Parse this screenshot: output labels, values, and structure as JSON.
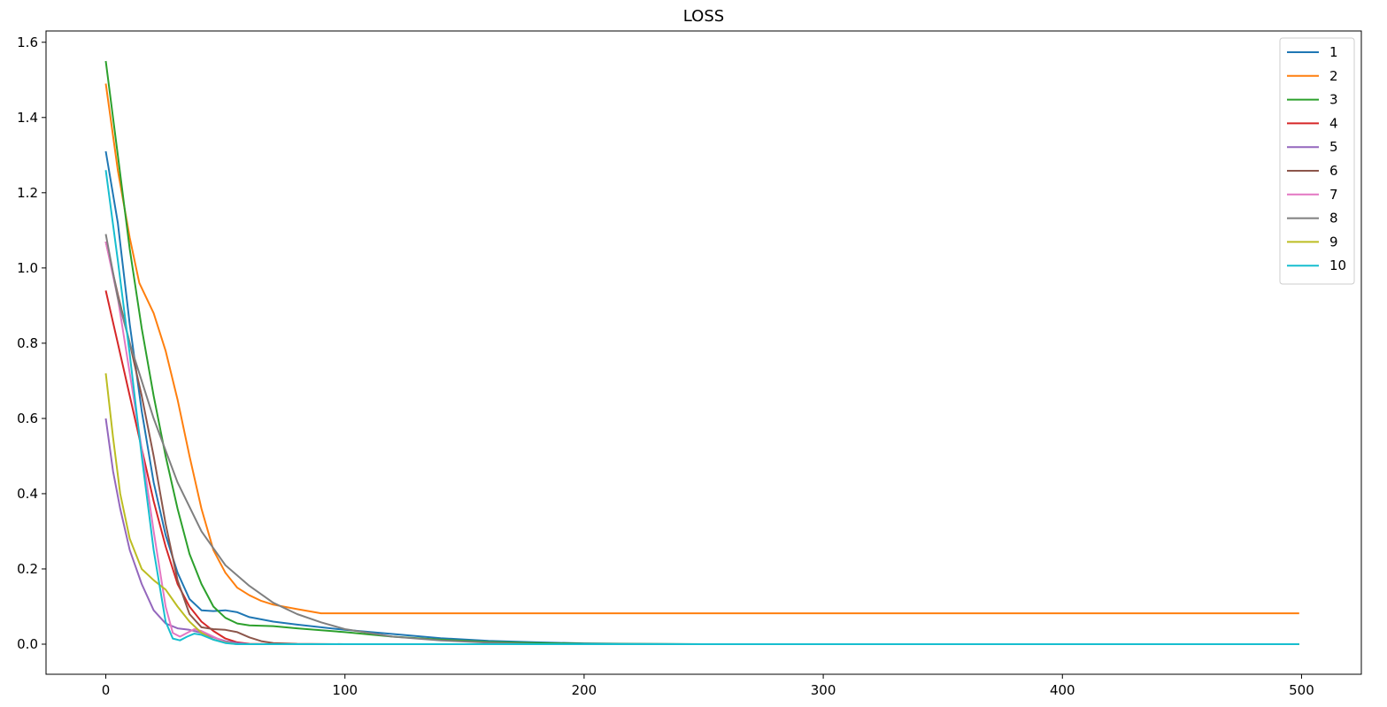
{
  "chart_data": {
    "type": "line",
    "title": "LOSS",
    "xlabel": "",
    "ylabel": "",
    "xlim": [
      -25,
      525
    ],
    "ylim": [
      -0.08,
      1.63
    ],
    "xticks": [
      0,
      100,
      200,
      300,
      400,
      500
    ],
    "yticks": [
      0.0,
      0.2,
      0.4,
      0.6,
      0.8,
      1.0,
      1.2,
      1.4,
      1.6
    ],
    "xtick_labels": [
      "0",
      "100",
      "200",
      "300",
      "400",
      "500"
    ],
    "ytick_labels": [
      "0.0",
      "0.2",
      "0.4",
      "0.6",
      "0.8",
      "1.0",
      "1.2",
      "1.4",
      "1.6"
    ],
    "grid": false,
    "legend_position": "top-right",
    "series": [
      {
        "name": "1",
        "color": "#1f77b4",
        "points": [
          [
            0,
            1.31
          ],
          [
            5,
            1.12
          ],
          [
            10,
            0.85
          ],
          [
            15,
            0.62
          ],
          [
            20,
            0.43
          ],
          [
            25,
            0.29
          ],
          [
            30,
            0.19
          ],
          [
            35,
            0.12
          ],
          [
            40,
            0.09
          ],
          [
            45,
            0.088
          ],
          [
            50,
            0.09
          ],
          [
            55,
            0.085
          ],
          [
            60,
            0.072
          ],
          [
            70,
            0.06
          ],
          [
            80,
            0.052
          ],
          [
            90,
            0.045
          ],
          [
            100,
            0.038
          ],
          [
            120,
            0.027
          ],
          [
            140,
            0.016
          ],
          [
            160,
            0.009
          ],
          [
            180,
            0.005
          ],
          [
            200,
            0.002
          ],
          [
            220,
            0.001
          ],
          [
            250,
            0.0
          ],
          [
            300,
            0.0
          ],
          [
            499,
            0.0
          ]
        ]
      },
      {
        "name": "2",
        "color": "#ff7f0e",
        "points": [
          [
            0,
            1.49
          ],
          [
            5,
            1.26
          ],
          [
            10,
            1.08
          ],
          [
            14,
            0.96
          ],
          [
            20,
            0.88
          ],
          [
            25,
            0.78
          ],
          [
            30,
            0.65
          ],
          [
            35,
            0.5
          ],
          [
            40,
            0.36
          ],
          [
            45,
            0.25
          ],
          [
            50,
            0.19
          ],
          [
            55,
            0.15
          ],
          [
            60,
            0.13
          ],
          [
            65,
            0.115
          ],
          [
            70,
            0.105
          ],
          [
            80,
            0.093
          ],
          [
            90,
            0.082
          ],
          [
            100,
            0.082
          ],
          [
            200,
            0.082
          ],
          [
            300,
            0.082
          ],
          [
            400,
            0.082
          ],
          [
            499,
            0.082
          ]
        ]
      },
      {
        "name": "3",
        "color": "#2ca02c",
        "points": [
          [
            0,
            1.55
          ],
          [
            5,
            1.3
          ],
          [
            10,
            1.05
          ],
          [
            15,
            0.84
          ],
          [
            20,
            0.66
          ],
          [
            25,
            0.5
          ],
          [
            30,
            0.36
          ],
          [
            35,
            0.24
          ],
          [
            40,
            0.16
          ],
          [
            45,
            0.1
          ],
          [
            50,
            0.07
          ],
          [
            55,
            0.055
          ],
          [
            60,
            0.05
          ],
          [
            70,
            0.048
          ],
          [
            80,
            0.042
          ],
          [
            100,
            0.032
          ],
          [
            120,
            0.02
          ],
          [
            140,
            0.012
          ],
          [
            160,
            0.006
          ],
          [
            180,
            0.003
          ],
          [
            200,
            0.001
          ],
          [
            250,
            0.0
          ],
          [
            499,
            0.0
          ]
        ]
      },
      {
        "name": "4",
        "color": "#d62728",
        "points": [
          [
            0,
            0.94
          ],
          [
            5,
            0.8
          ],
          [
            10,
            0.66
          ],
          [
            15,
            0.52
          ],
          [
            20,
            0.38
          ],
          [
            25,
            0.26
          ],
          [
            30,
            0.16
          ],
          [
            35,
            0.1
          ],
          [
            40,
            0.06
          ],
          [
            45,
            0.035
          ],
          [
            50,
            0.015
          ],
          [
            55,
            0.005
          ],
          [
            60,
            0.001
          ],
          [
            70,
            0.0
          ],
          [
            499,
            0.0
          ]
        ]
      },
      {
        "name": "5",
        "color": "#9467bd",
        "points": [
          [
            0,
            0.6
          ],
          [
            3,
            0.46
          ],
          [
            6,
            0.36
          ],
          [
            10,
            0.25
          ],
          [
            15,
            0.16
          ],
          [
            20,
            0.09
          ],
          [
            25,
            0.055
          ],
          [
            30,
            0.042
          ],
          [
            35,
            0.038
          ],
          [
            40,
            0.03
          ],
          [
            45,
            0.018
          ],
          [
            50,
            0.008
          ],
          [
            55,
            0.003
          ],
          [
            60,
            0.0
          ],
          [
            499,
            0.0
          ]
        ]
      },
      {
        "name": "6",
        "color": "#8c564b",
        "points": [
          [
            0,
            1.07
          ],
          [
            5,
            0.93
          ],
          [
            10,
            0.8
          ],
          [
            15,
            0.66
          ],
          [
            20,
            0.5
          ],
          [
            25,
            0.32
          ],
          [
            30,
            0.17
          ],
          [
            35,
            0.08
          ],
          [
            40,
            0.045
          ],
          [
            45,
            0.04
          ],
          [
            50,
            0.038
          ],
          [
            55,
            0.032
          ],
          [
            60,
            0.018
          ],
          [
            65,
            0.008
          ],
          [
            70,
            0.003
          ],
          [
            80,
            0.001
          ],
          [
            100,
            0.0
          ],
          [
            499,
            0.0
          ]
        ]
      },
      {
        "name": "7",
        "color": "#e377c2",
        "points": [
          [
            0,
            1.07
          ],
          [
            5,
            0.92
          ],
          [
            10,
            0.72
          ],
          [
            15,
            0.52
          ],
          [
            20,
            0.3
          ],
          [
            25,
            0.1
          ],
          [
            28,
            0.03
          ],
          [
            31,
            0.02
          ],
          [
            34,
            0.03
          ],
          [
            37,
            0.04
          ],
          [
            40,
            0.035
          ],
          [
            45,
            0.02
          ],
          [
            50,
            0.005
          ],
          [
            55,
            0.0
          ],
          [
            499,
            0.0
          ]
        ]
      },
      {
        "name": "8",
        "color": "#7f7f7f",
        "points": [
          [
            0,
            1.09
          ],
          [
            5,
            0.92
          ],
          [
            10,
            0.8
          ],
          [
            15,
            0.7
          ],
          [
            20,
            0.6
          ],
          [
            30,
            0.43
          ],
          [
            40,
            0.3
          ],
          [
            50,
            0.21
          ],
          [
            60,
            0.155
          ],
          [
            70,
            0.11
          ],
          [
            80,
            0.08
          ],
          [
            90,
            0.058
          ],
          [
            100,
            0.04
          ],
          [
            120,
            0.02
          ],
          [
            140,
            0.01
          ],
          [
            160,
            0.004
          ],
          [
            180,
            0.0
          ],
          [
            499,
            0.0
          ]
        ]
      },
      {
        "name": "9",
        "color": "#bcbd22",
        "points": [
          [
            0,
            0.72
          ],
          [
            3,
            0.55
          ],
          [
            6,
            0.4
          ],
          [
            10,
            0.28
          ],
          [
            15,
            0.2
          ],
          [
            20,
            0.17
          ],
          [
            25,
            0.145
          ],
          [
            30,
            0.1
          ],
          [
            35,
            0.06
          ],
          [
            40,
            0.03
          ],
          [
            45,
            0.012
          ],
          [
            50,
            0.004
          ],
          [
            55,
            0.0
          ],
          [
            499,
            0.0
          ]
        ]
      },
      {
        "name": "10",
        "color": "#17becf",
        "points": [
          [
            0,
            1.26
          ],
          [
            5,
            1.02
          ],
          [
            10,
            0.77
          ],
          [
            15,
            0.5
          ],
          [
            20,
            0.25
          ],
          [
            25,
            0.06
          ],
          [
            28,
            0.015
          ],
          [
            31,
            0.01
          ],
          [
            34,
            0.02
          ],
          [
            37,
            0.028
          ],
          [
            40,
            0.025
          ],
          [
            45,
            0.012
          ],
          [
            50,
            0.003
          ],
          [
            55,
            0.0
          ],
          [
            499,
            0.0
          ]
        ]
      }
    ]
  }
}
